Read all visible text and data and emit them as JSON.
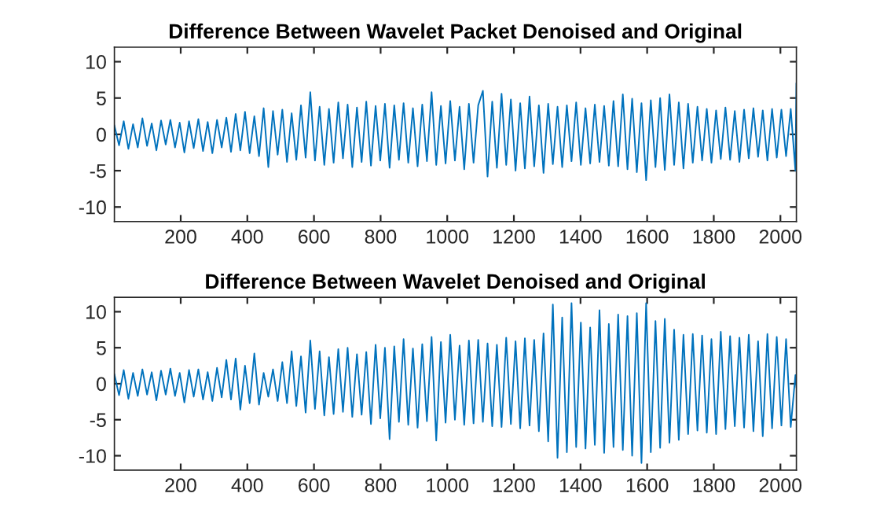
{
  "chart_data": [
    {
      "type": "line",
      "title": "Difference Between Wavelet Packet Denoised and Original",
      "x": [
        1,
        15,
        29,
        43,
        57,
        71,
        85,
        99,
        113,
        127,
        141,
        155,
        169,
        183,
        197,
        211,
        225,
        239,
        253,
        267,
        281,
        295,
        309,
        323,
        337,
        351,
        365,
        379,
        393,
        407,
        421,
        435,
        449,
        463,
        477,
        491,
        505,
        519,
        533,
        547,
        561,
        575,
        589,
        603,
        617,
        631,
        645,
        659,
        673,
        687,
        701,
        715,
        729,
        743,
        757,
        771,
        785,
        799,
        813,
        827,
        841,
        855,
        869,
        883,
        897,
        911,
        925,
        939,
        953,
        967,
        981,
        995,
        1009,
        1023,
        1037,
        1051,
        1065,
        1079,
        1093,
        1107,
        1121,
        1135,
        1149,
        1163,
        1177,
        1191,
        1205,
        1219,
        1233,
        1247,
        1261,
        1275,
        1289,
        1303,
        1317,
        1331,
        1345,
        1359,
        1373,
        1387,
        1401,
        1415,
        1429,
        1443,
        1457,
        1471,
        1485,
        1499,
        1513,
        1527,
        1541,
        1555,
        1569,
        1583,
        1597,
        1611,
        1625,
        1639,
        1653,
        1667,
        1681,
        1695,
        1709,
        1723,
        1737,
        1751,
        1765,
        1779,
        1793,
        1807,
        1821,
        1835,
        1849,
        1863,
        1877,
        1891,
        1905,
        1919,
        1933,
        1947,
        1961,
        1975,
        1989,
        2003,
        2017,
        2031,
        2045,
        2048
      ],
      "series": [
        {
          "color": "#0072bd",
          "values": [
            1.2,
            -1.5,
            1.8,
            -2.0,
            1.4,
            -1.8,
            2.2,
            -1.6,
            1.5,
            -2.2,
            1.9,
            -1.4,
            2.0,
            -1.8,
            1.6,
            -2.5,
            1.8,
            -1.9,
            2.1,
            -2.3,
            1.7,
            -2.6,
            2.0,
            -1.8,
            2.3,
            -2.4,
            2.8,
            -2.2,
            3.1,
            -2.6,
            2.5,
            -3.0,
            3.6,
            -4.5,
            3.2,
            -2.8,
            3.4,
            -3.8,
            2.9,
            -3.5,
            4.0,
            -3.2,
            5.8,
            -3.6,
            3.8,
            -4.2,
            3.5,
            -3.9,
            4.4,
            -3.3,
            4.1,
            -4.5,
            3.7,
            -3.8,
            4.5,
            -4.3,
            3.9,
            -3.6,
            4.2,
            -4.6,
            4.0,
            -3.5,
            4.3,
            -3.9,
            3.6,
            -4.4,
            4.1,
            -3.7,
            5.8,
            -4.2,
            3.9,
            -4.0,
            4.6,
            -3.6,
            3.8,
            -4.8,
            4.2,
            -3.9,
            4.0,
            6.0,
            -5.8,
            4.5,
            -4.6,
            5.6,
            -4.2,
            4.8,
            -5.0,
            4.3,
            -4.7,
            5.2,
            -4.4,
            4.0,
            -5.3,
            4.2,
            -4.1,
            3.8,
            -4.5,
            4.0,
            -3.7,
            4.4,
            -4.2,
            3.6,
            -4.0,
            4.1,
            -3.8,
            3.9,
            -4.3,
            4.6,
            -4.4,
            5.5,
            -4.8,
            4.9,
            -5.2,
            4.3,
            -6.3,
            4.7,
            -4.5,
            5.0,
            -4.9,
            5.5,
            -4.2,
            4.4,
            -4.7,
            4.2,
            -3.9,
            3.8,
            -3.6,
            3.5,
            -3.9,
            3.3,
            -3.4,
            3.7,
            -3.5,
            3.2,
            -3.8,
            3.4,
            -3.3,
            3.6,
            -3.1,
            3.3,
            -3.6,
            3.5,
            -3.2,
            3.4,
            -3.0,
            3.5,
            -5.0,
            7.0
          ]
        }
      ],
      "xlim": [
        1,
        2048
      ],
      "ylim": [
        -12,
        12
      ],
      "xticks": [
        200,
        400,
        600,
        800,
        1000,
        1200,
        1400,
        1600,
        1800,
        2000
      ],
      "yticks": [
        -10,
        -5,
        0,
        5,
        10
      ],
      "grid": false
    },
    {
      "type": "line",
      "title": "Difference Between Wavelet Denoised and Original",
      "x": [
        1,
        15,
        29,
        43,
        57,
        71,
        85,
        99,
        113,
        127,
        141,
        155,
        169,
        183,
        197,
        211,
        225,
        239,
        253,
        267,
        281,
        295,
        309,
        323,
        337,
        351,
        365,
        379,
        393,
        407,
        421,
        435,
        449,
        463,
        477,
        491,
        505,
        519,
        533,
        547,
        561,
        575,
        589,
        603,
        617,
        631,
        645,
        659,
        673,
        687,
        701,
        715,
        729,
        743,
        757,
        771,
        785,
        799,
        813,
        827,
        841,
        855,
        869,
        883,
        897,
        911,
        925,
        939,
        953,
        967,
        981,
        995,
        1009,
        1023,
        1037,
        1051,
        1065,
        1079,
        1093,
        1107,
        1121,
        1135,
        1149,
        1163,
        1177,
        1191,
        1205,
        1219,
        1233,
        1247,
        1261,
        1275,
        1289,
        1303,
        1317,
        1331,
        1345,
        1359,
        1373,
        1387,
        1401,
        1415,
        1429,
        1443,
        1457,
        1471,
        1485,
        1499,
        1513,
        1527,
        1541,
        1555,
        1569,
        1583,
        1597,
        1611,
        1625,
        1639,
        1653,
        1667,
        1681,
        1695,
        1709,
        1723,
        1737,
        1751,
        1765,
        1779,
        1793,
        1807,
        1821,
        1835,
        1849,
        1863,
        1877,
        1891,
        1905,
        1919,
        1933,
        1947,
        1961,
        1975,
        1989,
        2003,
        2017,
        2031,
        2045,
        2048
      ],
      "series": [
        {
          "color": "#0072bd",
          "values": [
            1.3,
            -1.6,
            1.9,
            -2.1,
            1.5,
            -1.7,
            2.0,
            -1.5,
            1.6,
            -2.3,
            1.8,
            -1.5,
            2.1,
            -1.7,
            1.5,
            -2.6,
            1.9,
            -1.8,
            2.0,
            -2.2,
            1.6,
            -2.4,
            2.2,
            -1.9,
            3.3,
            -2.2,
            3.5,
            -3.6,
            2.5,
            -2.7,
            4.2,
            -2.9,
            1.5,
            -1.8,
            2.0,
            -2.4,
            3.0,
            -2.7,
            4.5,
            -3.1,
            3.8,
            -4.0,
            6.0,
            -3.5,
            4.5,
            -4.4,
            3.7,
            -4.2,
            4.8,
            -3.9,
            5.0,
            -4.6,
            4.1,
            -4.3,
            4.4,
            -5.6,
            5.4,
            -4.8,
            5.0,
            -7.7,
            5.2,
            -5.3,
            6.2,
            -5.7,
            4.9,
            -6.1,
            5.5,
            -5.2,
            6.5,
            -7.9,
            5.8,
            -5.4,
            6.8,
            -5.0,
            5.3,
            -5.7,
            6.0,
            -5.5,
            6.1,
            -5.3,
            5.6,
            -5.9,
            5.4,
            -6.0,
            6.4,
            -5.6,
            5.9,
            -6.2,
            6.3,
            -5.8,
            6.1,
            -6.6,
            7.0,
            -8.0,
            11.0,
            -10.3,
            9.2,
            -9.5,
            11.2,
            -8.8,
            8.5,
            -9.0,
            7.8,
            -8.5,
            10.2,
            -9.6,
            8.3,
            -8.8,
            9.6,
            -9.2,
            9.4,
            -10.0,
            9.8,
            -11.0,
            11.2,
            -9.5,
            8.7,
            -8.9,
            9.0,
            -8.2,
            7.5,
            -7.8,
            6.8,
            -7.0,
            6.9,
            -6.5,
            6.7,
            -6.8,
            6.2,
            -7.0,
            7.2,
            -6.3,
            6.6,
            -5.9,
            6.4,
            -6.1,
            6.8,
            -6.6,
            5.9,
            -7.3,
            6.9,
            -6.2,
            6.5,
            -5.8,
            6.2,
            -6.0,
            1.2,
            -0.5
          ]
        }
      ],
      "xlim": [
        1,
        2048
      ],
      "ylim": [
        -12,
        12
      ],
      "xticks": [
        200,
        400,
        600,
        800,
        1000,
        1200,
        1400,
        1600,
        1800,
        2000
      ],
      "yticks": [
        -10,
        -5,
        0,
        5,
        10
      ],
      "grid": false
    }
  ]
}
